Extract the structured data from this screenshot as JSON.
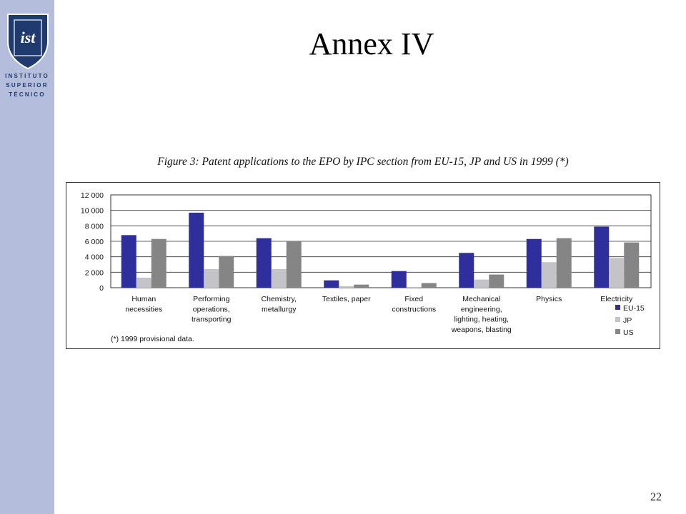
{
  "slide": {
    "title": "Annex IV",
    "page_number": "22"
  },
  "logo": {
    "monogram": "ist",
    "lines": [
      "INSTITUTO",
      "SUPERIOR",
      "TÉCNICO"
    ],
    "colors": {
      "shield": "#1f3a6e",
      "sidebar": "#b4bedc"
    }
  },
  "chart_data": {
    "type": "bar",
    "title": "Figure 3: Patent applications to the EPO by IPC section from EU-15, JP and US in 1999 (*)",
    "footnote": "(*) 1999 provisional data.",
    "categories": [
      [
        "Human",
        "necessities"
      ],
      [
        "Performing",
        "operations,",
        "transporting"
      ],
      [
        "Chemistry,",
        "metallurgy"
      ],
      [
        "Textiles, paper"
      ],
      [
        "Fixed",
        "constructions"
      ],
      [
        "Mechanical",
        "engineering,",
        "lighting, heating,",
        "weapons, blasting"
      ],
      [
        "Physics"
      ],
      [
        "Electricity"
      ]
    ],
    "series": [
      {
        "name": "EU-15",
        "color": "#2e2e9c",
        "values": [
          6800,
          9700,
          6400,
          950,
          2150,
          4500,
          6300,
          7900
        ]
      },
      {
        "name": "JP",
        "color": "#c4c4c8",
        "values": [
          1300,
          2400,
          2400,
          200,
          100,
          1050,
          3300,
          3850
        ]
      },
      {
        "name": "US",
        "color": "#858585",
        "values": [
          6300,
          4100,
          6000,
          400,
          600,
          1700,
          6400,
          5850
        ]
      }
    ],
    "y_ticks": [
      "0",
      "2 000",
      "4 000",
      "6 000",
      "8 000",
      "10 000",
      "12 000"
    ],
    "ylim": [
      0,
      12000
    ],
    "grid": true,
    "legend_position": "bottom-right"
  }
}
